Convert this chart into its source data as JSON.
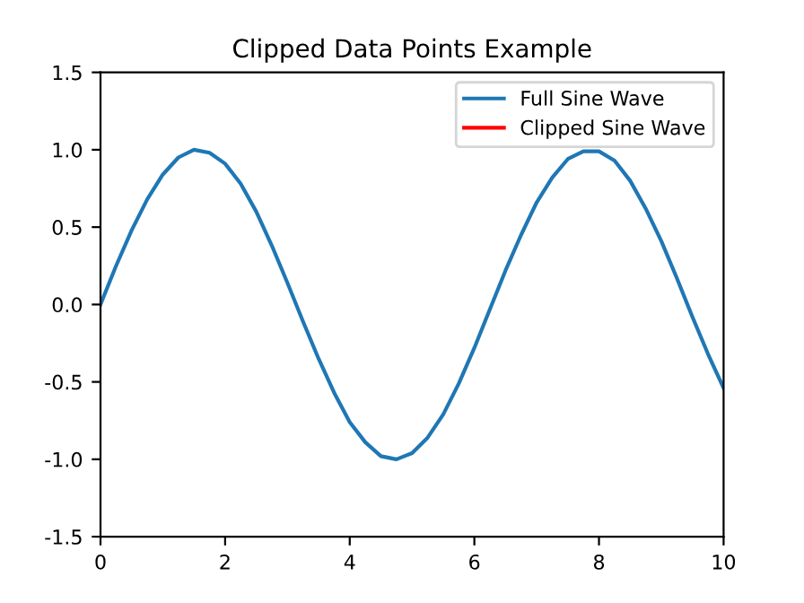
{
  "chart_data": {
    "type": "line",
    "title": "Clipped Data Points Example",
    "x": [
      0,
      0.25,
      0.5,
      0.75,
      1,
      1.25,
      1.5,
      1.75,
      2,
      2.25,
      2.5,
      2.75,
      3,
      3.25,
      3.5,
      3.75,
      4,
      4.25,
      4.5,
      4.75,
      5,
      5.25,
      5.5,
      5.75,
      6,
      6.25,
      6.5,
      6.75,
      7,
      7.25,
      7.5,
      7.75,
      8,
      8.25,
      8.5,
      8.75,
      9,
      9.25,
      9.5,
      9.75,
      10
    ],
    "series": [
      {
        "name": "Full Sine Wave",
        "color": "#1f77b4",
        "values": [
          0,
          0.25,
          0.48,
          0.68,
          0.84,
          0.95,
          1.0,
          0.98,
          0.91,
          0.78,
          0.6,
          0.38,
          0.14,
          -0.11,
          -0.35,
          -0.57,
          -0.76,
          -0.89,
          -0.98,
          -1.0,
          -0.96,
          -0.86,
          -0.71,
          -0.51,
          -0.28,
          -0.03,
          0.22,
          0.45,
          0.66,
          0.82,
          0.94,
          0.99,
          0.99,
          0.93,
          0.8,
          0.62,
          0.41,
          0.17,
          -0.08,
          -0.32,
          -0.54
        ]
      },
      {
        "name": "Clipped Sine Wave",
        "color": "#ff0000",
        "values": [
          null,
          null,
          null,
          null,
          null,
          null,
          null,
          null,
          null,
          null,
          null,
          null,
          null,
          null,
          null,
          null,
          null,
          null,
          null,
          null,
          null,
          null,
          null,
          null,
          null,
          null,
          null,
          null,
          null,
          null,
          null,
          null,
          null,
          null,
          null,
          null,
          null,
          null,
          null,
          null,
          null
        ]
      }
    ],
    "xlim": [
      0,
      10
    ],
    "xticks": [
      0,
      2,
      4,
      6,
      8,
      10
    ],
    "ylim": [
      -1.5,
      1.5
    ],
    "yticks": [
      {
        "value": -1.5,
        "label": "-1.5"
      },
      {
        "value": -1.0,
        "label": "-1.0"
      },
      {
        "value": -0.5,
        "label": "-0.5"
      },
      {
        "value": 0,
        "label": "0.0"
      },
      {
        "value": 0.5,
        "label": "0.5"
      },
      {
        "value": 1.0,
        "label": "1.0"
      },
      {
        "value": 1.5,
        "label": "1.5"
      }
    ],
    "legend": "top right",
    "grid": false,
    "marker": "none",
    "line_style": "solid"
  }
}
